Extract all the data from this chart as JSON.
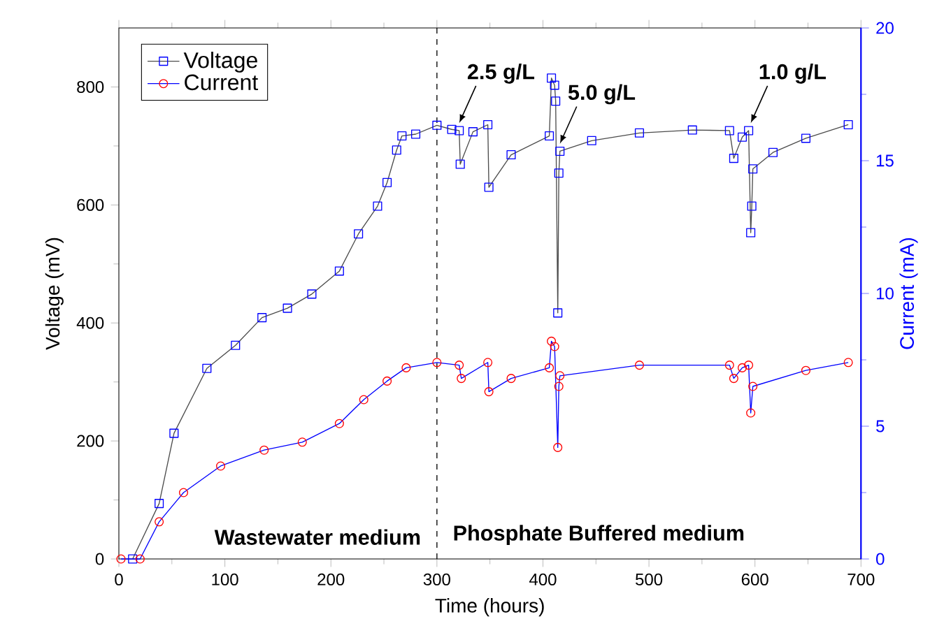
{
  "chart_data": {
    "type": "line",
    "xlabel": "Time (hours)",
    "ylabel": "Voltage (mV)",
    "y2label": "Current (mA)",
    "xlim": [
      0,
      700
    ],
    "xticks": [
      0,
      100,
      200,
      300,
      400,
      500,
      600,
      700
    ],
    "ylim": [
      0,
      900
    ],
    "yticks": [
      0,
      200,
      400,
      600,
      800
    ],
    "y2lim": [
      0,
      20
    ],
    "y2ticks": [
      0,
      5,
      10,
      15,
      20
    ],
    "legend": "top left",
    "series": [
      {
        "name": "Voltage",
        "color": "#0000ff",
        "marker": "square",
        "x": [
          13,
          38,
          52,
          83,
          110,
          135,
          159,
          182,
          208,
          226,
          244,
          253,
          262,
          267,
          280,
          300,
          314,
          321,
          322,
          334,
          348,
          349,
          370,
          406,
          408,
          411,
          412,
          414,
          415,
          416,
          446,
          491,
          541,
          576,
          580,
          588,
          594,
          596,
          597,
          598,
          617,
          648,
          688
        ],
        "values": [
          0,
          94,
          213,
          323,
          362,
          409,
          425,
          449,
          488,
          551,
          598,
          638,
          693,
          717,
          720,
          735,
          728,
          726,
          669,
          724,
          736,
          630,
          685,
          717,
          815,
          803,
          776,
          417,
          654,
          691,
          709,
          722,
          727,
          726,
          679,
          715,
          726,
          553,
          598,
          661,
          689,
          713,
          736
        ]
      },
      {
        "name": "Current",
        "color": "#ff0000",
        "marker": "circle",
        "axis": "y2",
        "x": [
          2,
          20,
          38,
          61,
          96,
          137,
          173,
          208,
          231,
          253,
          271,
          300,
          321,
          323,
          348,
          349,
          370,
          406,
          408,
          411,
          414,
          415,
          416,
          491,
          576,
          580,
          588,
          594,
          596,
          598,
          648,
          688
        ],
        "values": [
          0,
          0,
          1.4,
          2.5,
          3.5,
          4.1,
          4.4,
          5.1,
          6.0,
          6.7,
          7.2,
          7.4,
          7.3,
          6.8,
          7.4,
          6.3,
          6.8,
          7.2,
          8.2,
          8.0,
          4.2,
          6.5,
          6.9,
          7.3,
          7.3,
          6.8,
          7.2,
          7.3,
          5.5,
          6.5,
          7.1,
          7.4
        ]
      }
    ],
    "ref_lines": [
      {
        "axis": "x",
        "value": 300,
        "line_style": "dashed"
      }
    ],
    "annotations": [
      {
        "text": "2.5 g/L",
        "x": 321,
        "y": 726
      },
      {
        "text": "5.0 g/L",
        "x": 416,
        "y": 691
      },
      {
        "text": "1.0 g/L",
        "x": 596,
        "y": 726
      },
      "Wastewater medium",
      "Phosphate Buffered medium"
    ]
  }
}
